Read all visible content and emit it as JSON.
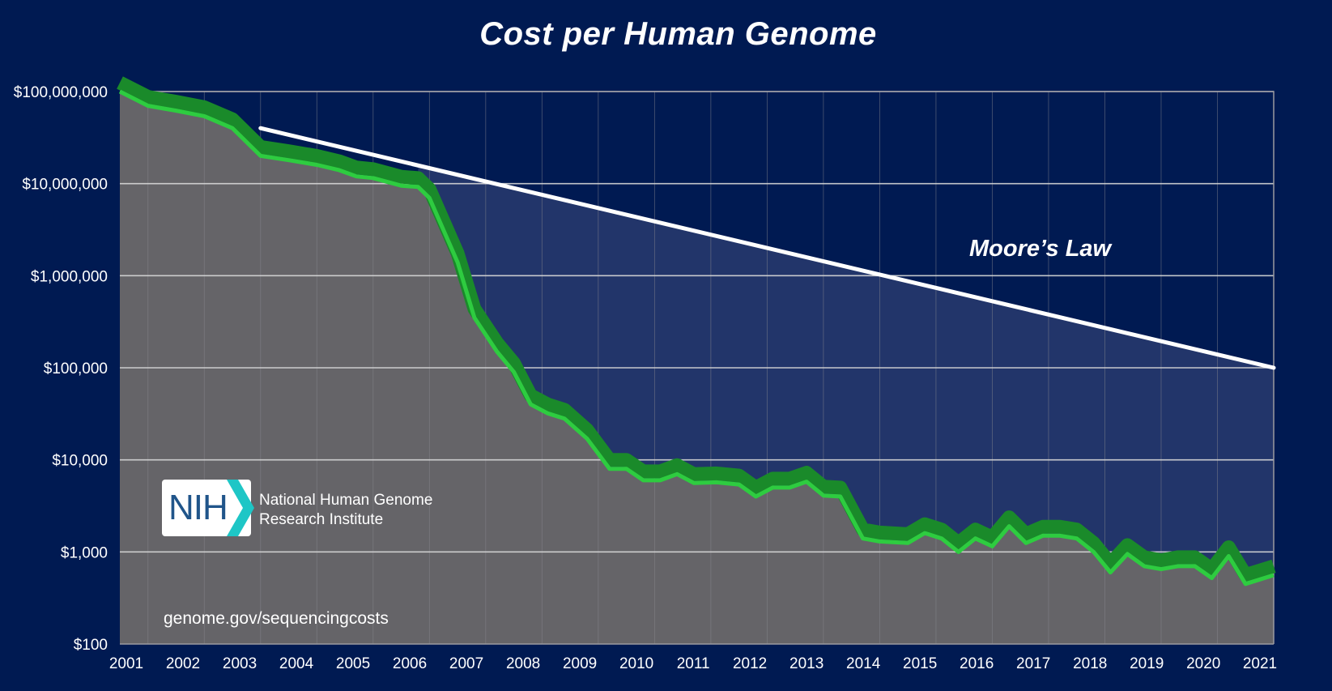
{
  "chart_data": {
    "type": "line",
    "title": "Cost per Human Genome",
    "y_scale": "log",
    "ylim": [
      100,
      100000000
    ],
    "xlim": [
      2001.0,
      2021.5
    ],
    "y_tick_labels": [
      {
        "value": 100000000,
        "label": "$100,000,000"
      },
      {
        "value": 10000000,
        "label": "$10,000,000"
      },
      {
        "value": 1000000,
        "label": "$1,000,000"
      },
      {
        "value": 100000,
        "label": "$100,000"
      },
      {
        "value": 10000,
        "label": "$10,000"
      },
      {
        "value": 1000,
        "label": "$1,000"
      },
      {
        "value": 100,
        "label": "$100"
      }
    ],
    "x_tick_labels": [
      "2001",
      "2002",
      "2003",
      "2004",
      "2005",
      "2006",
      "2007",
      "2008",
      "2009",
      "2010",
      "2011",
      "2012",
      "2013",
      "2014",
      "2015",
      "2016",
      "2017",
      "2018",
      "2019",
      "2020",
      "2021"
    ],
    "grid": true,
    "series": [
      {
        "name": "",
        "color": "#2ecc40",
        "points": [
          [
            2001.0,
            100000000
          ],
          [
            2001.5,
            70000000
          ],
          [
            2002.0,
            62000000
          ],
          [
            2002.5,
            54000000
          ],
          [
            2003.0,
            40000000
          ],
          [
            2003.5,
            20000000
          ],
          [
            2004.0,
            18000000
          ],
          [
            2004.5,
            16000000
          ],
          [
            2004.9,
            14000000
          ],
          [
            2005.2,
            12000000
          ],
          [
            2005.5,
            11500000
          ],
          [
            2006.0,
            9500000
          ],
          [
            2006.3,
            9200000
          ],
          [
            2006.5,
            7000000
          ],
          [
            2007.0,
            1400000
          ],
          [
            2007.3,
            350000
          ],
          [
            2007.7,
            150000
          ],
          [
            2008.0,
            90000
          ],
          [
            2008.3,
            40000
          ],
          [
            2008.6,
            32000
          ],
          [
            2008.9,
            28000
          ],
          [
            2009.3,
            17000
          ],
          [
            2009.7,
            8000
          ],
          [
            2010.0,
            8000
          ],
          [
            2010.3,
            6000
          ],
          [
            2010.6,
            6000
          ],
          [
            2010.9,
            7000
          ],
          [
            2011.2,
            5600
          ],
          [
            2011.6,
            5700
          ],
          [
            2012.0,
            5400
          ],
          [
            2012.3,
            4000
          ],
          [
            2012.6,
            5000
          ],
          [
            2012.9,
            5000
          ],
          [
            2013.2,
            5800
          ],
          [
            2013.5,
            4100
          ],
          [
            2013.8,
            4000
          ],
          [
            2014.2,
            1400
          ],
          [
            2014.5,
            1300
          ],
          [
            2015.0,
            1250
          ],
          [
            2015.3,
            1600
          ],
          [
            2015.6,
            1400
          ],
          [
            2015.9,
            1000
          ],
          [
            2016.2,
            1400
          ],
          [
            2016.5,
            1150
          ],
          [
            2016.8,
            1900
          ],
          [
            2017.1,
            1250
          ],
          [
            2017.4,
            1500
          ],
          [
            2017.7,
            1500
          ],
          [
            2018.0,
            1400
          ],
          [
            2018.3,
            1000
          ],
          [
            2018.6,
            600
          ],
          [
            2018.9,
            950
          ],
          [
            2019.2,
            700
          ],
          [
            2019.5,
            650
          ],
          [
            2019.8,
            700
          ],
          [
            2020.1,
            700
          ],
          [
            2020.4,
            520
          ],
          [
            2020.7,
            900
          ],
          [
            2021.0,
            450
          ],
          [
            2021.5,
            560
          ]
        ]
      },
      {
        "name": "Moore's Law",
        "color": "#ffffff",
        "points": [
          [
            2003.5,
            40000000
          ],
          [
            2021.5,
            100000
          ]
        ]
      }
    ],
    "annotations": [
      "Moore’s Law"
    ]
  },
  "logo": {
    "mark": "NIH",
    "org_line_1": "National Human Genome",
    "org_line_2": "Research Institute"
  },
  "source_url": "genome.gov/sequencingcosts",
  "colors": {
    "background": "#001a52",
    "area_fill": "#656468",
    "gap_fill": "#22356a",
    "cost_line": "#2ecc40",
    "cost_band": "#1a8a2a",
    "moore_line": "#ffffff",
    "grid": "#d8d8d8",
    "logo_accent": "#1ec6c6"
  }
}
